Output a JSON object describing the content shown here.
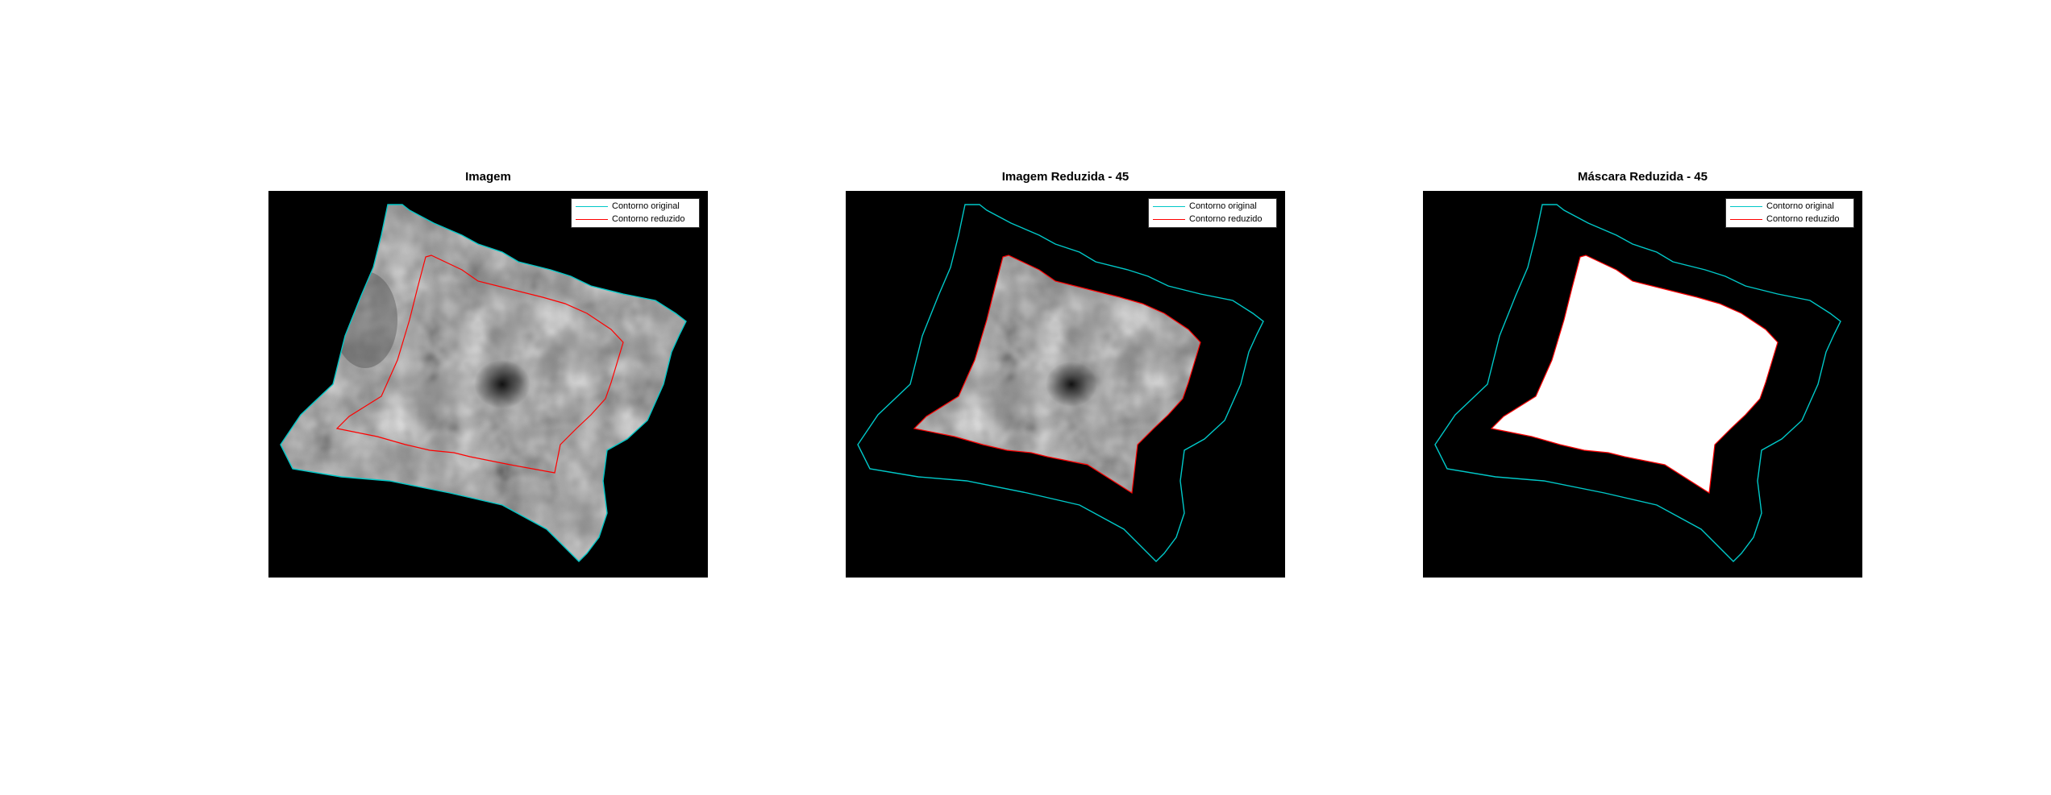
{
  "figure": {
    "panels": [
      {
        "title": "Imagem",
        "content": "original-image"
      },
      {
        "title": "Imagem Reduzida - 45",
        "content": "reduced-image"
      },
      {
        "title": "Máscara Reduzida - 45",
        "content": "reduced-mask"
      }
    ],
    "legend": {
      "original": "Contorno original",
      "reduced": "Contorno reduzido"
    },
    "colors": {
      "original_contour": "#00c8c8",
      "reduced_contour": "#ff0000",
      "background": "#000000",
      "mask": "#ffffff"
    }
  }
}
